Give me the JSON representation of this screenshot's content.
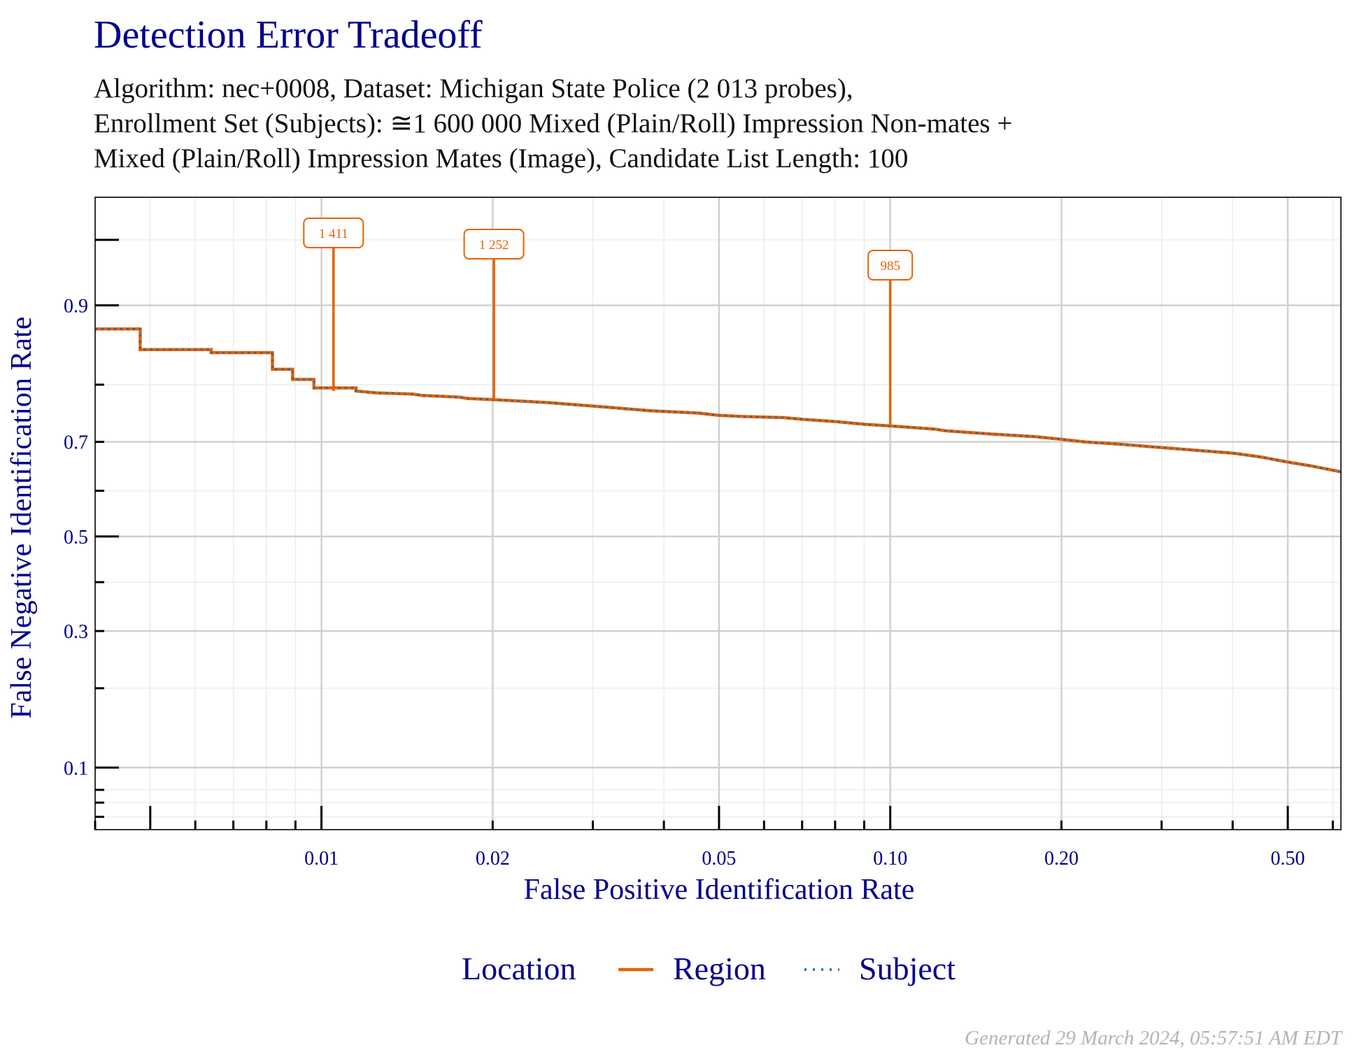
{
  "chart_data": {
    "type": "line",
    "title": "Detection Error Tradeoff",
    "subtitle_lines": [
      "Algorithm: nec+0008, Dataset: Michigan State Police (2 013 probes),",
      "Enrollment Set (Subjects): ≅1 600 000 Mixed (Plain/Roll) Impression Non-mates +",
      "Mixed (Plain/Roll) Impression Mates (Image), Candidate List Length: 100"
    ],
    "xlabel": "False Positive Identification Rate",
    "ylabel": "False Negative Identification Rate",
    "x_scale": "log",
    "y_scale": "probit",
    "xlim": [
      0.004,
      0.62
    ],
    "ylim": [
      0.052,
      0.97
    ],
    "x_ticks": [
      {
        "value": 0.01,
        "label": "0.01"
      },
      {
        "value": 0.02,
        "label": "0.02"
      },
      {
        "value": 0.05,
        "label": "0.05"
      },
      {
        "value": 0.1,
        "label": "0.10"
      },
      {
        "value": 0.2,
        "label": "0.20"
      },
      {
        "value": 0.5,
        "label": "0.50"
      }
    ],
    "y_ticks": [
      {
        "value": 0.1,
        "label": "0.1"
      },
      {
        "value": 0.3,
        "label": "0.3"
      },
      {
        "value": 0.5,
        "label": "0.5"
      },
      {
        "value": 0.7,
        "label": "0.7"
      },
      {
        "value": 0.9,
        "label": "0.9"
      }
    ],
    "grid": true,
    "legend": {
      "title": "Location",
      "position": "bottom"
    },
    "series": [
      {
        "name": "Region",
        "color": "#e66101",
        "style": "solid",
        "points": [
          [
            0.004,
            0.875
          ],
          [
            0.0048,
            0.875
          ],
          [
            0.0048,
            0.85
          ],
          [
            0.0064,
            0.85
          ],
          [
            0.0064,
            0.846
          ],
          [
            0.0082,
            0.846
          ],
          [
            0.0082,
            0.823
          ],
          [
            0.0089,
            0.823
          ],
          [
            0.0089,
            0.808
          ],
          [
            0.0097,
            0.808
          ],
          [
            0.0097,
            0.795
          ],
          [
            0.0115,
            0.795
          ],
          [
            0.0115,
            0.79
          ],
          [
            0.0125,
            0.787
          ],
          [
            0.0145,
            0.785
          ],
          [
            0.015,
            0.783
          ],
          [
            0.0175,
            0.78
          ],
          [
            0.018,
            0.778
          ],
          [
            0.02,
            0.776
          ],
          [
            0.025,
            0.771
          ],
          [
            0.032,
            0.763
          ],
          [
            0.038,
            0.757
          ],
          [
            0.046,
            0.753
          ],
          [
            0.05,
            0.749
          ],
          [
            0.055,
            0.747
          ],
          [
            0.065,
            0.745
          ],
          [
            0.07,
            0.742
          ],
          [
            0.08,
            0.738
          ],
          [
            0.09,
            0.733
          ],
          [
            0.1,
            0.73
          ],
          [
            0.11,
            0.727
          ],
          [
            0.12,
            0.724
          ],
          [
            0.125,
            0.721
          ],
          [
            0.15,
            0.715
          ],
          [
            0.18,
            0.71
          ],
          [
            0.2,
            0.705
          ],
          [
            0.22,
            0.7
          ],
          [
            0.25,
            0.696
          ],
          [
            0.3,
            0.689
          ],
          [
            0.35,
            0.683
          ],
          [
            0.4,
            0.678
          ],
          [
            0.45,
            0.67
          ],
          [
            0.5,
            0.66
          ],
          [
            0.55,
            0.652
          ],
          [
            0.62,
            0.64
          ]
        ]
      },
      {
        "name": "Subject",
        "color": "#0571b0",
        "style": "dotted",
        "points": [
          [
            0.004,
            0.875
          ],
          [
            0.0048,
            0.875
          ],
          [
            0.0048,
            0.85
          ],
          [
            0.0064,
            0.85
          ],
          [
            0.0064,
            0.846
          ],
          [
            0.0082,
            0.846
          ],
          [
            0.0082,
            0.823
          ],
          [
            0.0089,
            0.823
          ],
          [
            0.0089,
            0.808
          ],
          [
            0.0097,
            0.808
          ],
          [
            0.0097,
            0.795
          ],
          [
            0.0115,
            0.795
          ],
          [
            0.0115,
            0.79
          ],
          [
            0.0125,
            0.787
          ],
          [
            0.0145,
            0.785
          ],
          [
            0.015,
            0.783
          ],
          [
            0.0175,
            0.78
          ],
          [
            0.018,
            0.778
          ],
          [
            0.02,
            0.776
          ],
          [
            0.025,
            0.771
          ],
          [
            0.032,
            0.763
          ],
          [
            0.038,
            0.757
          ],
          [
            0.046,
            0.753
          ],
          [
            0.05,
            0.749
          ],
          [
            0.055,
            0.747
          ],
          [
            0.065,
            0.745
          ],
          [
            0.07,
            0.742
          ],
          [
            0.08,
            0.738
          ],
          [
            0.09,
            0.733
          ],
          [
            0.1,
            0.73
          ],
          [
            0.11,
            0.727
          ],
          [
            0.12,
            0.724
          ],
          [
            0.125,
            0.721
          ],
          [
            0.15,
            0.715
          ],
          [
            0.18,
            0.71
          ],
          [
            0.2,
            0.705
          ],
          [
            0.22,
            0.7
          ],
          [
            0.25,
            0.696
          ],
          [
            0.3,
            0.689
          ],
          [
            0.35,
            0.683
          ],
          [
            0.4,
            0.678
          ],
          [
            0.45,
            0.67
          ],
          [
            0.5,
            0.66
          ],
          [
            0.55,
            0.652
          ],
          [
            0.62,
            0.64
          ]
        ]
      }
    ],
    "annotations": [
      {
        "label": "1 411",
        "x": 0.0105,
        "y": 0.79,
        "color": "#e66101"
      },
      {
        "label": "1 252",
        "x": 0.0201,
        "y": 0.776,
        "color": "#e66101"
      },
      {
        "label": "985",
        "x": 0.1,
        "y": 0.73,
        "color": "#e66101"
      }
    ]
  },
  "footer": "Generated 29 March 2024, 05:57:51 AM EDT"
}
